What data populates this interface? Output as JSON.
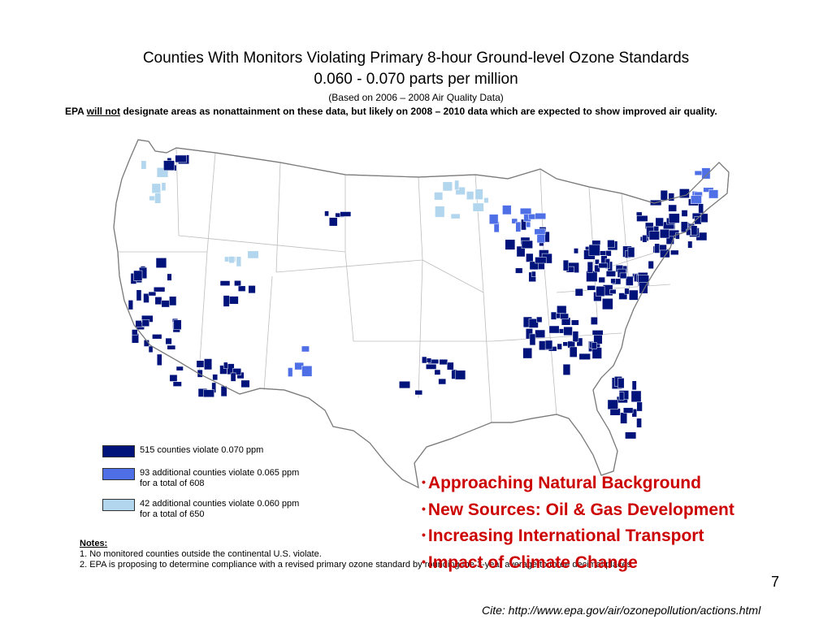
{
  "slide": {
    "title": "Counties With Monitors Violating Primary 8-hour Ground-level Ozone Standards",
    "subtitle": "0.060 -  0.070 parts per million",
    "based_on": "(Based on 2006 – 2008 Air Quality Data)",
    "epa_note_before": "EPA ",
    "epa_note_emph": "will not",
    "epa_note_after": " designate areas as nonattainment on these data, but likely on 2008 – 2010 data which are expected to show improved air quality.",
    "page_number": "7",
    "cite": "Cite: http://www.epa.gov/air/ozonepollution/actions.html"
  },
  "legend": {
    "items": [
      {
        "line1": "515 counties violate 0.070 ppm",
        "line2": "",
        "color": "#00137a"
      },
      {
        "line1": "93 additional counties violate 0.065 ppm",
        "line2": "for a total of 608",
        "color": "#4f6fe6"
      },
      {
        "line1": "42 additional counties violate 0.060 ppm",
        "line2": "for a total of 650",
        "color": "#b3d6ef"
      }
    ]
  },
  "notes": {
    "title": "Notes:",
    "lines": [
      "1. No monitored counties outside the continental U.S. violate.",
      "2. EPA is proposing to determine compliance with a revised primary ozone standard by rounding the 3-year average to three decimal places."
    ]
  },
  "bullets": [
    "Approaching Natural Background",
    "New Sources: Oil & Gas Development",
    "Increasing International Transport",
    "Impact of Climate Change"
  ],
  "map_colors": {
    "land": "#ffffff",
    "border": "#9a9a9a",
    "level_070": "#00137a",
    "level_065": "#4f6fe6",
    "level_060": "#b3d6ef"
  }
}
